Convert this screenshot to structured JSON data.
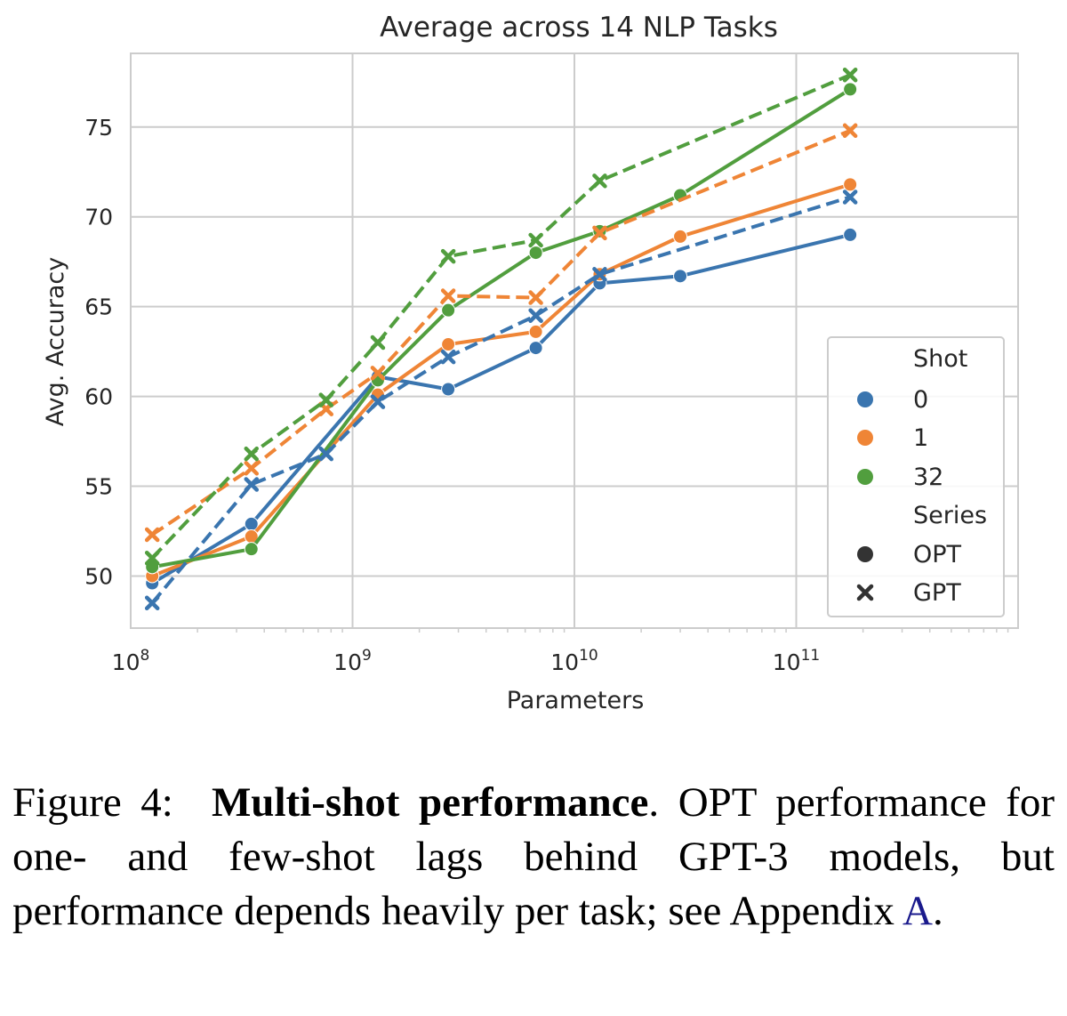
{
  "chart_data": {
    "type": "line",
    "title": "Average across 14 NLP Tasks",
    "xlabel": "Parameters",
    "ylabel": "Avg. Accuracy",
    "xscale": "log",
    "xlim": [
      100000000.0,
      1000000000000.0
    ],
    "ylim": [
      47.1,
      79.1
    ],
    "xticks": [
      {
        "value": 100000000.0,
        "base": "10",
        "exp": "8"
      },
      {
        "value": 1000000000.0,
        "base": "10",
        "exp": "9"
      },
      {
        "value": 10000000000.0,
        "base": "10",
        "exp": "10"
      },
      {
        "value": 100000000000.0,
        "base": "10",
        "exp": "11"
      }
    ],
    "yticks": [
      50,
      55,
      60,
      65,
      70,
      75
    ],
    "grid": true,
    "legend_position": "lower-right",
    "series": [
      {
        "name": "OPT 0-shot",
        "model": "OPT",
        "shot": "0",
        "color": "#3a75af",
        "dashed": false,
        "marker": "circle",
        "x": [
          125000000.0,
          350000000.0,
          1300000000.0,
          2700000000.0,
          6700000000.0,
          13000000000.0,
          30000000000.0,
          175000000000.0
        ],
        "y": [
          49.6,
          52.9,
          61.1,
          60.4,
          62.7,
          66.3,
          66.7,
          69.0
        ]
      },
      {
        "name": "OPT 1-shot",
        "model": "OPT",
        "shot": "1",
        "color": "#ef8536",
        "dashed": false,
        "marker": "circle",
        "x": [
          125000000.0,
          350000000.0,
          1300000000.0,
          2700000000.0,
          6700000000.0,
          13000000000.0,
          30000000000.0,
          175000000000.0
        ],
        "y": [
          50.0,
          52.2,
          60.1,
          62.9,
          63.6,
          66.8,
          68.9,
          71.8
        ]
      },
      {
        "name": "OPT 32-shot",
        "model": "OPT",
        "shot": "32",
        "color": "#519e3e",
        "dashed": false,
        "marker": "circle",
        "x": [
          125000000.0,
          350000000.0,
          1300000000.0,
          2700000000.0,
          6700000000.0,
          13000000000.0,
          30000000000.0,
          175000000000.0
        ],
        "y": [
          50.5,
          51.5,
          60.9,
          64.8,
          68.0,
          69.2,
          71.2,
          77.1
        ]
      },
      {
        "name": "GPT 0-shot",
        "model": "GPT",
        "shot": "0",
        "color": "#3a75af",
        "dashed": true,
        "marker": "x",
        "x": [
          125000000.0,
          350000000.0,
          760000000.0,
          1300000000.0,
          2700000000.0,
          6700000000.0,
          13000000000.0,
          175000000000.0
        ],
        "y": [
          48.5,
          55.1,
          56.8,
          59.7,
          62.2,
          64.5,
          66.8,
          71.1
        ]
      },
      {
        "name": "GPT 1-shot",
        "model": "GPT",
        "shot": "1",
        "color": "#ef8536",
        "dashed": true,
        "marker": "x",
        "x": [
          125000000.0,
          350000000.0,
          760000000.0,
          1300000000.0,
          2700000000.0,
          6700000000.0,
          13000000000.0,
          175000000000.0
        ],
        "y": [
          52.3,
          56.0,
          59.3,
          61.3,
          65.6,
          65.5,
          69.1,
          74.8
        ]
      },
      {
        "name": "GPT 32-shot",
        "model": "GPT",
        "shot": "32",
        "color": "#519e3e",
        "dashed": true,
        "marker": "x",
        "x": [
          125000000.0,
          350000000.0,
          760000000.0,
          1300000000.0,
          2700000000.0,
          6700000000.0,
          13000000000.0,
          175000000000.0
        ],
        "y": [
          51.0,
          56.8,
          59.8,
          63.0,
          67.8,
          68.7,
          72.0,
          77.9
        ]
      }
    ],
    "legend": {
      "shot_title": "Shot",
      "shots": [
        {
          "label": "0",
          "color": "#3a75af"
        },
        {
          "label": "1",
          "color": "#ef8536"
        },
        {
          "label": "32",
          "color": "#519e3e"
        }
      ],
      "series_title": "Series",
      "series_items": [
        {
          "label": "OPT",
          "marker": "circle",
          "color": "#333333"
        },
        {
          "label": "GPT",
          "marker": "x",
          "color": "#333333"
        }
      ]
    }
  },
  "caption": {
    "prefix": "Figure 4:",
    "bold": "Multi-shot performance",
    "body_start": ". OPT performance for one- and few-shot lags behind GPT-3 models, but performance depends heavily per task; see Appendix",
    "ref": "A",
    "end": "."
  }
}
